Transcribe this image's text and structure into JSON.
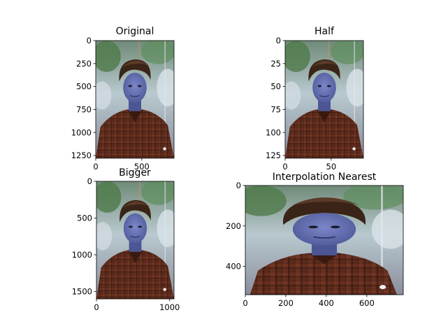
{
  "figure": {
    "panels": [
      {
        "id": "original",
        "title": "Original"
      },
      {
        "id": "half",
        "title": "Half"
      },
      {
        "id": "bigger",
        "title": "Bigger"
      },
      {
        "id": "interp",
        "title": "Interpolation Nearest"
      }
    ]
  },
  "chart_data": [
    {
      "type": "image",
      "title": "Original",
      "xlabel": "",
      "ylabel": "",
      "xlim": [
        0,
        850
      ],
      "ylim": [
        1280,
        0
      ],
      "xticks": [
        0,
        500
      ],
      "yticks": [
        0,
        250,
        500,
        750,
        1000,
        1250
      ]
    },
    {
      "type": "image",
      "title": "Half",
      "xlabel": "",
      "ylabel": "",
      "xlim": [
        0,
        85
      ],
      "ylim": [
        128,
        0
      ],
      "xticks": [
        0,
        50
      ],
      "yticks": [
        0,
        25,
        50,
        75,
        100,
        125
      ]
    },
    {
      "type": "image",
      "title": "Bigger",
      "xlabel": "",
      "ylabel": "",
      "xlim": [
        0,
        1060
      ],
      "ylim": [
        1600,
        0
      ],
      "xticks": [
        0,
        1000
      ],
      "yticks": [
        0,
        500,
        1000,
        1500
      ]
    },
    {
      "type": "image",
      "title": "Interpolation Nearest",
      "xlabel": "",
      "ylabel": "",
      "xlim": [
        0,
        780
      ],
      "ylim": [
        540,
        0
      ],
      "xticks": [
        0,
        200,
        400,
        600
      ],
      "yticks": [
        0,
        200,
        400
      ]
    }
  ]
}
